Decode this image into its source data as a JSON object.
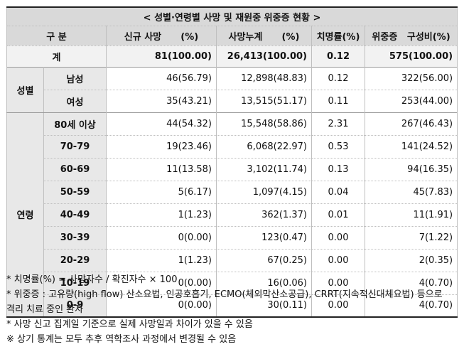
{
  "title": "< 성별·연령별 사망 및 재원중 위중증 현황 >",
  "headers": {
    "category": "구 분",
    "new_deaths": "신규 사망      (%)",
    "cum_deaths": "사망누계      (%)",
    "fatality": "치명률(%)",
    "critical": "위중증   구성비(%)"
  },
  "total": {
    "label": "계",
    "new_deaths": "81(100.00)",
    "cum_deaths": "26,413(100.00)",
    "fatality": "0.12",
    "critical": "575(100.00)"
  },
  "sex": {
    "label": "성별",
    "rows": [
      {
        "label": "남성",
        "new_deaths": "46(56.79)",
        "cum_deaths": "12,898(48.83)",
        "fatality": "0.12",
        "critical": "322(56.00)"
      },
      {
        "label": "여성",
        "new_deaths": "35(43.21)",
        "cum_deaths": "13,515(51.17)",
        "fatality": "0.11",
        "critical": "253(44.00)"
      }
    ]
  },
  "age": {
    "label": "연령",
    "rows": [
      {
        "label": "80세 이상",
        "new_deaths": "44(54.32)",
        "cum_deaths": "15,548(58.86)",
        "fatality": "2.31",
        "critical": "267(46.43)"
      },
      {
        "label": "70-79",
        "new_deaths": "19(23.46)",
        "cum_deaths": "6,068(22.97)",
        "fatality": "0.53",
        "critical": "141(24.52)"
      },
      {
        "label": "60-69",
        "new_deaths": "11(13.58)",
        "cum_deaths": "3,102(11.74)",
        "fatality": "0.13",
        "critical": "94(16.35)"
      },
      {
        "label": "50-59",
        "new_deaths": "5(6.17)",
        "cum_deaths": "1,097(4.15)",
        "fatality": "0.04",
        "critical": "45(7.83)"
      },
      {
        "label": "40-49",
        "new_deaths": "1(1.23)",
        "cum_deaths": "362(1.37)",
        "fatality": "0.01",
        "critical": "11(1.91)"
      },
      {
        "label": "30-39",
        "new_deaths": "0(0.00)",
        "cum_deaths": "123(0.47)",
        "fatality": "0.00",
        "critical": "7(1.22)"
      },
      {
        "label": "20-29",
        "new_deaths": "1(1.23)",
        "cum_deaths": "67(0.25)",
        "fatality": "0.00",
        "critical": "2(0.35)"
      },
      {
        "label": "10-19",
        "new_deaths": "0(0.00)",
        "cum_deaths": "16(0.06)",
        "fatality": "0.00",
        "critical": "4(0.70)"
      },
      {
        "label": "0-9",
        "new_deaths": "0(0.00)",
        "cum_deaths": "30(0.11)",
        "fatality": "0.00",
        "critical": "4(0.70)"
      }
    ]
  },
  "notes": [
    "* 치명률(%) = 사망자수 / 확진자수 × 100",
    "* 위중증 : 고유량(high flow) 산소요법, 인공호흡기, ECMO(체외막산소공급), CRRT(지속적신대체요법) 등으로",
    "격리 치료 중인 환자",
    "* 사망 신고 집계일 기준으로 실제 사망일과 차이가 있을 수 있음",
    "※ 상기 통계는 모두 추후 역학조사 과정에서 변경될 수 있음"
  ]
}
